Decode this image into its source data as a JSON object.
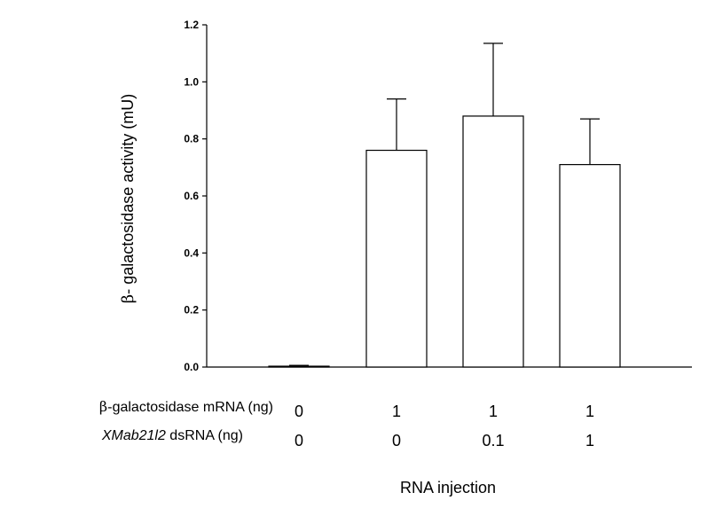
{
  "chart_data": {
    "type": "bar",
    "ylabel_prefix": "β-",
    "ylabel_rest": " galactosidase activity (mU)",
    "xlabel": "RNA injection",
    "ylim": [
      0,
      1.2
    ],
    "yticks": [
      "0.0",
      "0.2",
      "0.4",
      "0.6",
      "0.8",
      "1.0",
      "1.2"
    ],
    "values": [
      0.003,
      0.76,
      0.88,
      0.71
    ],
    "errors": [
      0.003,
      0.18,
      0.255,
      0.16
    ],
    "rows": [
      {
        "label_prefix": "β-",
        "label_italic": "",
        "label_rest": "galactosidase mRNA (ng)",
        "values": [
          "0",
          "1",
          "1",
          "1"
        ]
      },
      {
        "label_prefix": "",
        "label_italic": "XMab21l2",
        "label_rest": " dsRNA (ng)",
        "values": [
          "0",
          "0",
          "0.1",
          "1"
        ]
      }
    ],
    "grid": false,
    "legend": "none"
  }
}
